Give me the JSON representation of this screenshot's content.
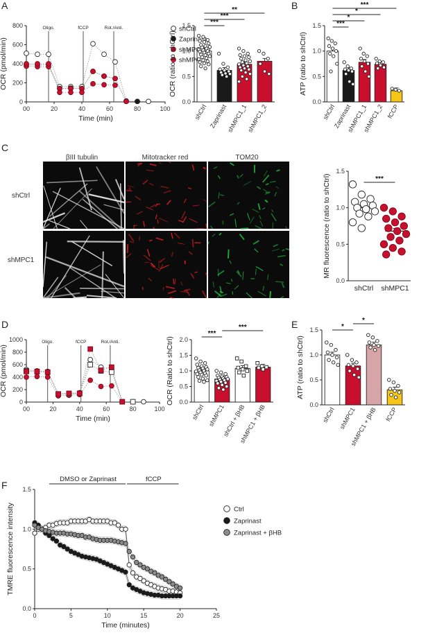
{
  "panel_labels": [
    "A",
    "B",
    "C",
    "D",
    "E",
    "F"
  ],
  "colors": {
    "white": "#ffffff",
    "black": "#1a1a1a",
    "red": "#c8102e",
    "darkred": "#a50e26",
    "pink": "#d7a4a8",
    "yellow": "#f5c518",
    "grey": "#8c8c8c"
  },
  "icons": {
    "white": "open-circle",
    "black": "filled-circle-black",
    "red": "filled-circle-red",
    "pink": "filled-circle-pink",
    "grey": "filled-circle-grey",
    "square_white": "open-square",
    "square_red": "filled-square-red"
  },
  "chart_data": [
    {
      "id": "A_time",
      "type": "scatter",
      "ylabel": "OCR (pmol/min)",
      "xlabel": "Time (min)",
      "xlim": [
        0,
        100
      ],
      "ylim": [
        0,
        800
      ],
      "xticks": [
        "00",
        "20",
        "40",
        "60",
        "80",
        "100"
      ],
      "yticks": [
        "0",
        "200",
        "400",
        "600",
        "800"
      ],
      "events": [
        {
          "x": 16,
          "label": "Oligo."
        },
        {
          "x": 41,
          "label": "fCCP"
        },
        {
          "x": 63,
          "label": "Rot./Anti."
        }
      ],
      "legend": [
        "shCtrl",
        "Zaprinast",
        "shMPC1_1",
        "shMPC1_2"
      ],
      "series": [
        {
          "name": "shCtrl",
          "color": "white",
          "x": [
            0,
            8,
            16,
            24,
            32,
            40,
            48,
            56,
            64,
            72,
            80,
            88
          ],
          "y": [
            510,
            500,
            500,
            160,
            160,
            160,
            610,
            500,
            420,
            10,
            5,
            5
          ]
        },
        {
          "name": "Zaprinast",
          "color": "black",
          "x": [
            0,
            8,
            16,
            24,
            32,
            40,
            48,
            56,
            64,
            72,
            80
          ],
          "y": [
            390,
            390,
            390,
            140,
            145,
            140,
            320,
            270,
            245,
            5,
            5
          ]
        },
        {
          "name": "shMPC1_1",
          "color": "red",
          "x": [
            0,
            8,
            16,
            24,
            32,
            40,
            48,
            56,
            64,
            72
          ],
          "y": [
            375,
            370,
            370,
            140,
            140,
            140,
            320,
            270,
            245,
            5
          ]
        },
        {
          "name": "shMPC1_2",
          "color": "red",
          "x": [
            0,
            8,
            16,
            24,
            32,
            40,
            48,
            56,
            64
          ],
          "y": [
            400,
            400,
            400,
            100,
            100,
            100,
            190,
            180,
            175
          ]
        }
      ]
    },
    {
      "id": "A_bar",
      "type": "bar",
      "ylabel": "OCR (ratio to shCtrl)",
      "categories": [
        "shCtrl",
        "Zaprinast",
        "shMPC1_1",
        "shMPC1_2"
      ],
      "values": [
        1.0,
        0.62,
        0.74,
        0.8
      ],
      "colors": [
        "white",
        "black",
        "red",
        "red"
      ],
      "ylim": [
        0,
        1.5
      ],
      "yticks": [
        "0.0",
        "0.5",
        "1.0",
        "1.5"
      ],
      "points": [
        [
          1.3,
          1.28,
          1.22,
          1.2,
          1.18,
          1.15,
          1.12,
          1.1,
          1.08,
          1.07,
          1.05,
          1.03,
          1.02,
          1.0,
          0.99,
          0.97,
          0.95,
          0.93,
          0.92,
          0.9,
          0.88,
          0.86,
          0.84,
          0.82,
          0.8,
          0.78,
          0.76,
          0.74,
          0.7,
          0.66
        ],
        [
          0.95,
          0.75,
          0.68,
          0.64,
          0.62,
          0.6,
          0.58,
          0.56,
          0.55,
          0.53,
          0.5
        ],
        [
          1.05,
          1.0,
          0.95,
          0.92,
          0.9,
          0.88,
          0.85,
          0.82,
          0.8,
          0.78,
          0.76,
          0.74,
          0.72,
          0.7,
          0.68,
          0.66,
          0.64,
          0.62,
          0.58,
          0.55,
          0.5,
          0.45,
          0.4
        ],
        [
          1.0,
          0.95,
          0.85,
          0.75,
          0.6,
          0.55
        ]
      ],
      "sig": [
        {
          "from": 0,
          "to": 1,
          "label": "***"
        },
        {
          "from": 0,
          "to": 2,
          "label": "***"
        },
        {
          "from": 0,
          "to": 3,
          "label": "**"
        }
      ]
    },
    {
      "id": "B_bar",
      "type": "bar",
      "ylabel": "ATP (ratio to shCtrl)",
      "categories": [
        "shCtrl",
        "Zaprinast",
        "shMPC1_1",
        "shMPC1_2",
        "fCCP"
      ],
      "values": [
        1.0,
        0.62,
        0.78,
        0.74,
        0.22
      ],
      "colors": [
        "white",
        "black",
        "red",
        "red",
        "yellow"
      ],
      "ylim": [
        0,
        1.5
      ],
      "yticks": [
        "0.0",
        "0.5",
        "1.0",
        "1.5"
      ],
      "points": [
        [
          1.25,
          1.2,
          1.15,
          1.1,
          1.05,
          1.0,
          0.95,
          0.9,
          0.75,
          0.6
        ],
        [
          0.78,
          0.7,
          0.66,
          0.64,
          0.62,
          0.6,
          0.55,
          0.4,
          0.35
        ],
        [
          1.05,
          0.95,
          0.9,
          0.85,
          0.8,
          0.75,
          0.7,
          0.6,
          0.5
        ],
        [
          0.85,
          0.8,
          0.78,
          0.76,
          0.72,
          0.68,
          0.66
        ],
        [
          0.26,
          0.24,
          0.22
        ]
      ],
      "sig": [
        {
          "from": 0,
          "to": 1,
          "label": "***"
        },
        {
          "from": 0,
          "to": 2,
          "label": "*"
        },
        {
          "from": 0,
          "to": 3,
          "label": "*"
        },
        {
          "from": 0,
          "to": 4,
          "label": "***"
        }
      ]
    },
    {
      "id": "C_scatter",
      "type": "scatter",
      "ylabel": "MR fluorescence (ratio to shCtrl)",
      "categories": [
        "shCtrl",
        "shMPC1"
      ],
      "means": [
        1.0,
        0.68
      ],
      "colors": [
        "white",
        "red"
      ],
      "ylim": [
        0,
        1.5
      ],
      "yticks": [
        "0.0",
        "0.5",
        "1.0",
        "1.5"
      ],
      "points": [
        [
          1.32,
          1.18,
          1.12,
          1.08,
          1.05,
          1.03,
          1.0,
          0.98,
          0.95,
          0.92,
          0.88,
          0.8,
          0.72
        ],
        [
          1.0,
          0.95,
          0.88,
          0.85,
          0.8,
          0.75,
          0.72,
          0.68,
          0.64,
          0.6,
          0.55,
          0.5,
          0.45,
          0.4,
          0.36
        ]
      ],
      "sig": [
        {
          "from": 0,
          "to": 1,
          "label": "***"
        }
      ]
    },
    {
      "id": "D_time",
      "type": "scatter",
      "ylabel": "OCR (pmol/min)",
      "xlabel": "Time (min)",
      "xlim": [
        0,
        100
      ],
      "ylim": [
        0,
        1000
      ],
      "xticks": [
        "00",
        "20",
        "40",
        "60",
        "80",
        "100"
      ],
      "yticks": [
        "0",
        "200",
        "400",
        "600",
        "800",
        "1000"
      ],
      "events": [
        {
          "x": 16,
          "label": "Oligo."
        },
        {
          "x": 41,
          "label": "fCCP"
        },
        {
          "x": 63,
          "label": "Rot./Anti."
        }
      ],
      "series": [
        {
          "name": "shCtrl",
          "marker": "circle",
          "color": "white",
          "x": [
            0,
            8,
            16,
            24,
            32,
            40,
            48,
            56,
            64,
            72,
            80,
            88
          ],
          "y": [
            520,
            500,
            490,
            130,
            140,
            150,
            680,
            560,
            540,
            5,
            5,
            5
          ]
        },
        {
          "name": "shMPC1",
          "marker": "circle",
          "color": "red",
          "x": [
            0,
            8,
            16,
            24,
            32,
            40,
            48,
            56,
            64,
            72
          ],
          "y": [
            400,
            410,
            400,
            100,
            110,
            120,
            350,
            250,
            260,
            5
          ]
        },
        {
          "name": "shCtrl + βHB",
          "marker": "square",
          "color": "white",
          "x": [
            0,
            8,
            16,
            24,
            32,
            40,
            48,
            56,
            64,
            72,
            80
          ],
          "y": [
            500,
            490,
            480,
            130,
            130,
            140,
            600,
            500,
            480,
            5,
            5
          ]
        },
        {
          "name": "shMPC1 + βHB",
          "marker": "square",
          "color": "red",
          "x": [
            0,
            8,
            16,
            24,
            32,
            40,
            48,
            56,
            64,
            72
          ],
          "y": [
            490,
            490,
            480,
            130,
            140,
            140,
            850,
            510,
            560,
            5
          ]
        }
      ]
    },
    {
      "id": "D_bar",
      "type": "bar",
      "ylabel": "OCR (Ratio to shCtrl)",
      "categories": [
        "shCtrl",
        "shMPC1",
        "shCtrl + βHB",
        "shMPC1 + βHB"
      ],
      "values": [
        1.0,
        0.74,
        1.08,
        1.12
      ],
      "colors": [
        "white",
        "red",
        "white",
        "red"
      ],
      "markers": [
        "circle",
        "circle",
        "square",
        "square"
      ],
      "ylim": [
        0,
        2.0
      ],
      "yticks": [
        "0.0",
        "0.5",
        "1.0",
        "1.5",
        "2.0"
      ],
      "points": [
        [
          1.4,
          1.3,
          1.25,
          1.2,
          1.15,
          1.12,
          1.1,
          1.08,
          1.05,
          1.02,
          1.0,
          0.98,
          0.95,
          0.92,
          0.9,
          0.88,
          0.85,
          0.8,
          0.75,
          0.7,
          0.68,
          0.65
        ],
        [
          1.0,
          0.95,
          0.9,
          0.85,
          0.82,
          0.8,
          0.78,
          0.76,
          0.74,
          0.72,
          0.7,
          0.68,
          0.65,
          0.62,
          0.6,
          0.55,
          0.5,
          0.45,
          0.4
        ],
        [
          1.4,
          1.3,
          1.15,
          1.1,
          1.05,
          1.0,
          0.95,
          0.85
        ],
        [
          1.25,
          1.15,
          1.12,
          1.1,
          1.05
        ]
      ],
      "sig": [
        {
          "from": 0,
          "to": 1,
          "label": "***"
        },
        {
          "from": 1,
          "to": 3,
          "label": "***"
        }
      ]
    },
    {
      "id": "E_bar",
      "type": "bar",
      "ylabel": "ATP (ratio to shCtrl)",
      "categories": [
        "shCtrl",
        "shMPC1",
        "shMPC1 + βHB",
        "fCCP"
      ],
      "values": [
        1.0,
        0.78,
        1.2,
        0.3
      ],
      "colors": [
        "white",
        "red",
        "pink",
        "yellow"
      ],
      "ylim": [
        0,
        1.5
      ],
      "yticks": [
        "0.0",
        "0.5",
        "1.0",
        "1.5"
      ],
      "points": [
        [
          1.25,
          1.2,
          1.1,
          1.05,
          1.0,
          0.95,
          0.9,
          0.85,
          0.8
        ],
        [
          1.0,
          0.9,
          0.85,
          0.8,
          0.78,
          0.72,
          0.68,
          0.6,
          0.55
        ],
        [
          1.4,
          1.35,
          1.28,
          1.25,
          1.2,
          1.18,
          1.15,
          1.1
        ],
        [
          0.5,
          0.45,
          0.38,
          0.32,
          0.28,
          0.25,
          0.2,
          0.15
        ]
      ],
      "sig": [
        {
          "from": 0,
          "to": 1,
          "label": "*"
        },
        {
          "from": 1,
          "to": 2,
          "label": "*"
        }
      ]
    },
    {
      "id": "F_time",
      "type": "line",
      "ylabel": "TMRE fluorescence intensity",
      "xlabel": "Time (minutes)",
      "xlim": [
        0,
        25
      ],
      "ylim": [
        0,
        1.5
      ],
      "xticks": [
        "0",
        "5",
        "10",
        "15",
        "20",
        "25"
      ],
      "yticks": [
        "0.0",
        "0.5",
        "1.0",
        "1.5"
      ],
      "bars": [
        {
          "from": 2,
          "to": 12.7,
          "label": "DMSO or Zaprinast"
        },
        {
          "from": 12.7,
          "to": 20,
          "label": "fCCP"
        }
      ],
      "legend": [
        "Ctrl",
        "Zaprinast",
        "Zaprinast + βHB"
      ],
      "series": [
        {
          "name": "Ctrl",
          "color": "white",
          "x": [
            0,
            0.5,
            1,
            1.5,
            2,
            2.5,
            3,
            3.5,
            4,
            4.5,
            5,
            5.5,
            6,
            6.5,
            7,
            7.5,
            8,
            8.5,
            9,
            9.5,
            10,
            10.5,
            11,
            11.5,
            12,
            12.5,
            13,
            13.5,
            14,
            14.5,
            15,
            15.5,
            16,
            16.5,
            17,
            17.5,
            18,
            18.5,
            19,
            19.5,
            20
          ],
          "y": [
            0.95,
            1.0,
            1.0,
            1.02,
            1.05,
            1.05,
            1.07,
            1.08,
            1.08,
            1.08,
            1.1,
            1.1,
            1.1,
            1.1,
            1.1,
            1.12,
            1.1,
            1.1,
            1.1,
            1.1,
            1.1,
            1.08,
            1.08,
            1.05,
            1.0,
            1.0,
            0.55,
            0.45,
            0.4,
            0.38,
            0.35,
            0.32,
            0.3,
            0.28,
            0.26,
            0.25,
            0.24,
            0.22,
            0.22,
            0.21,
            0.2
          ]
        },
        {
          "name": "Zaprinast",
          "color": "black",
          "x": [
            0,
            0.5,
            1,
            1.5,
            2,
            2.5,
            3,
            3.5,
            4,
            4.5,
            5,
            5.5,
            6,
            6.5,
            7,
            7.5,
            8,
            8.5,
            9,
            9.5,
            10,
            10.5,
            11,
            11.5,
            12,
            12.5,
            13,
            13.5,
            14,
            14.5,
            15,
            15.5,
            16,
            16.5,
            17,
            17.5,
            18,
            18.5,
            19,
            19.5,
            20
          ],
          "y": [
            1.08,
            1.05,
            1.0,
            0.95,
            0.92,
            0.88,
            0.85,
            0.8,
            0.78,
            0.75,
            0.72,
            0.7,
            0.68,
            0.66,
            0.65,
            0.64,
            0.63,
            0.62,
            0.6,
            0.58,
            0.56,
            0.54,
            0.52,
            0.5,
            0.48,
            0.46,
            0.3,
            0.26,
            0.24,
            0.22,
            0.2,
            0.19,
            0.18,
            0.17,
            0.17,
            0.16,
            0.16,
            0.16,
            0.16,
            0.16,
            0.16
          ]
        },
        {
          "name": "Zaprinast + βHB",
          "color": "grey",
          "x": [
            0,
            0.5,
            1,
            1.5,
            2,
            2.5,
            3,
            3.5,
            4,
            4.5,
            5,
            5.5,
            6,
            6.5,
            7,
            7.5,
            8,
            8.5,
            9,
            9.5,
            10,
            10.5,
            11,
            11.5,
            12,
            12.5,
            13,
            13.5,
            14,
            14.5,
            15,
            15.5,
            16,
            16.5,
            17,
            17.5,
            18,
            18.5,
            19,
            19.5,
            20
          ],
          "y": [
            1.05,
            1.02,
            1.0,
            0.98,
            0.97,
            0.96,
            0.95,
            0.95,
            0.95,
            0.94,
            0.94,
            0.93,
            0.92,
            0.92,
            0.9,
            0.9,
            0.88,
            0.87,
            0.86,
            0.86,
            0.86,
            0.86,
            0.85,
            0.84,
            0.83,
            0.82,
            0.72,
            0.65,
            0.58,
            0.55,
            0.52,
            0.5,
            0.47,
            0.45,
            0.42,
            0.4,
            0.37,
            0.34,
            0.31,
            0.28,
            0.26
          ]
        }
      ]
    }
  ],
  "images": {
    "columns": [
      "βIII tubulin",
      "Mitotracker red",
      "TOM20"
    ],
    "rows": [
      "shCtrl",
      "shMPC1"
    ]
  }
}
